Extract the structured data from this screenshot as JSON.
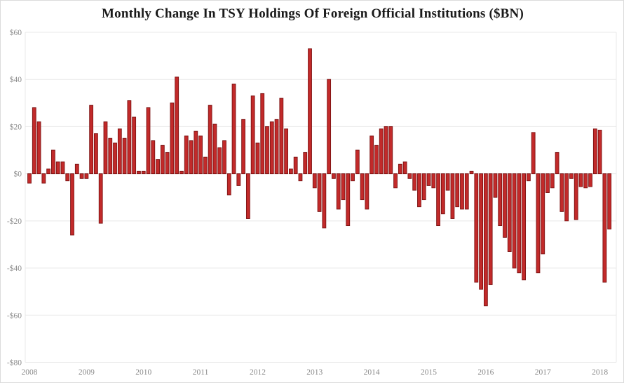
{
  "title": "Monthly Change In TSY Holdings Of Foreign Official Institutions ($BN)",
  "chart_data": {
    "type": "bar",
    "title": "Monthly Change In TSY Holdings Of Foreign Official Institutions ($BN)",
    "xlabel": "",
    "ylabel": "",
    "ylim": [
      -80,
      60
    ],
    "y_tick_step": 20,
    "y_tick_labels": [
      "$60",
      "$40",
      "$20",
      "$0",
      "-$20",
      "-$40",
      "-$60",
      "-$80"
    ],
    "x_tick_labels": [
      "2008",
      "2009",
      "2010",
      "2011",
      "2012",
      "2013",
      "2014",
      "2015",
      "2016",
      "2017",
      "2018"
    ],
    "grid": true,
    "legend": "none",
    "unit": "$BN",
    "frequency": "monthly",
    "series": [
      {
        "year": "2008",
        "values": [
          -4,
          28,
          22,
          -4,
          2,
          10,
          5,
          5,
          -3,
          -26,
          4,
          -2
        ]
      },
      {
        "year": "2009",
        "values": [
          -2,
          29,
          17,
          -21,
          22,
          15,
          13,
          19,
          15,
          31,
          24,
          1
        ]
      },
      {
        "year": "2010",
        "values": [
          1,
          28,
          14,
          6,
          12,
          9,
          30,
          41,
          1,
          16,
          14,
          18
        ]
      },
      {
        "year": "2011",
        "values": [
          16,
          7,
          29,
          21,
          11,
          14,
          -9,
          38,
          -5,
          23,
          -19,
          33
        ]
      },
      {
        "year": "2012",
        "values": [
          13,
          34,
          20,
          22,
          23,
          32,
          19,
          2,
          7,
          -3,
          9,
          53
        ]
      },
      {
        "year": "2013",
        "values": [
          -6,
          -16,
          -23,
          40,
          -2,
          -15,
          -11,
          -22,
          -3,
          10,
          -11,
          -15
        ]
      },
      {
        "year": "2014",
        "values": [
          16,
          12,
          19,
          20,
          20,
          -6,
          4,
          5,
          -2,
          -7,
          -14,
          -11
        ]
      },
      {
        "year": "2015",
        "values": [
          -5,
          -6,
          -22,
          -17,
          -7,
          -19,
          -14,
          -15,
          -15,
          1,
          -46,
          -49
        ]
      },
      {
        "year": "2016",
        "values": [
          -56,
          -47,
          -10,
          -22,
          -27,
          -33,
          -40,
          -42,
          -45,
          -3,
          17.5,
          -42
        ]
      },
      {
        "year": "2017",
        "values": [
          -34,
          -8,
          -6,
          9,
          -16,
          -20,
          -2,
          -19.5,
          -5.5,
          -6,
          -5.5,
          19
        ]
      },
      {
        "year": "2018",
        "values": [
          18.5,
          -46,
          -23.5
        ]
      }
    ],
    "colors": {
      "bar_fill": "#c22a2a",
      "bar_border": "#7d1414",
      "gridline": "#e9e9e9",
      "plot_border": "#e9e9e9",
      "axis_label": "#8a8a8a",
      "title": "#1a1a1a",
      "background": "#ffffff"
    }
  }
}
